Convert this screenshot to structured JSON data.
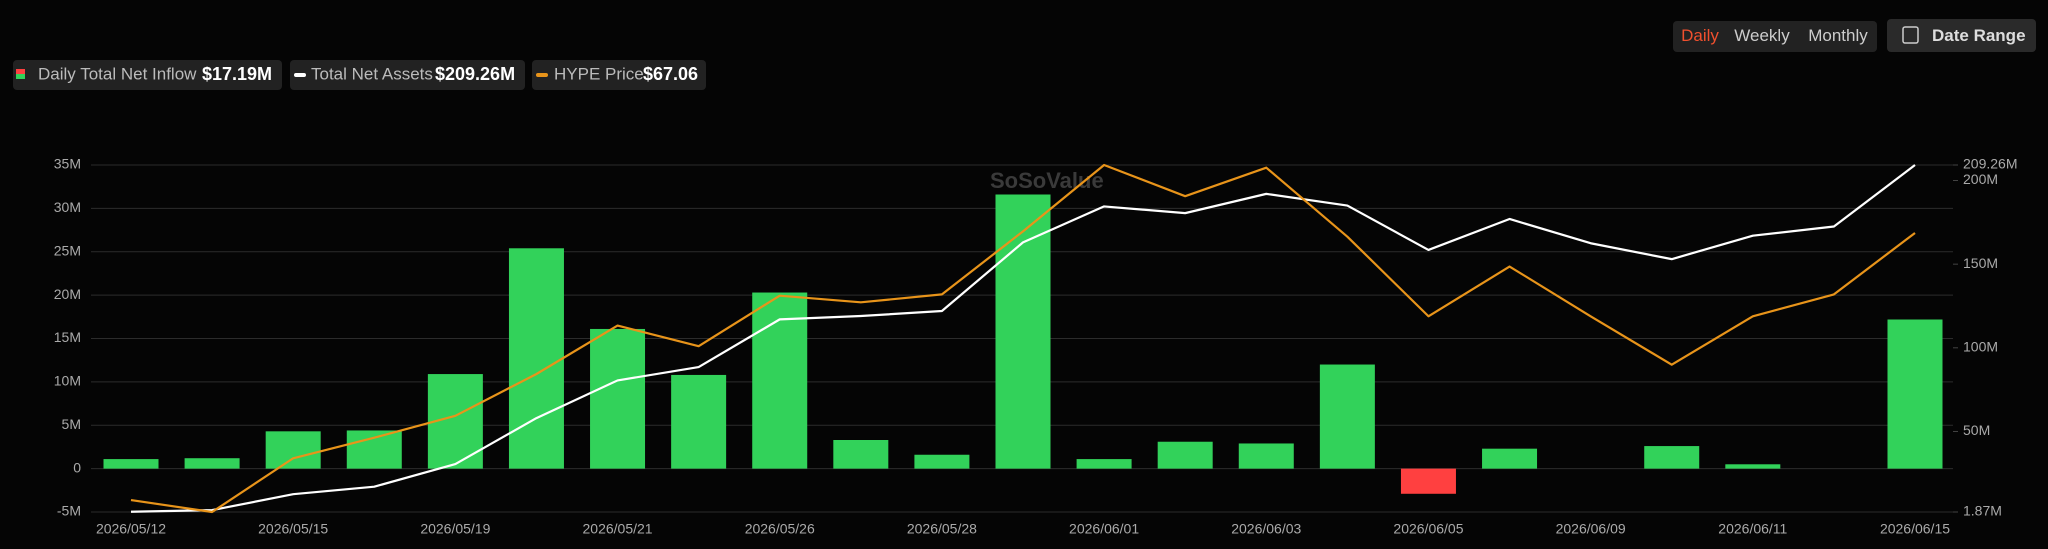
{
  "controls": {
    "periods": [
      "Daily",
      "Weekly",
      "Monthly"
    ],
    "active": 0,
    "date_range": "Date Range"
  },
  "watermark": "SoSoValue",
  "chart_data": {
    "type": "bar",
    "categories": [
      "2026/05/12",
      null,
      "2026/05/15",
      null,
      "2026/05/19",
      null,
      "2026/05/21",
      null,
      "2026/05/26",
      null,
      "2026/05/28",
      null,
      "2026/06/01",
      null,
      "2026/06/03",
      null,
      "2026/06/05",
      null,
      "2026/06/09",
      null,
      "2026/06/11",
      null,
      "2026/06/15"
    ],
    "legend_values": [
      "$17.19M",
      "$209.26M",
      "$67.06"
    ],
    "series": [
      {
        "name": "Daily Total Net Inflow",
        "type": "bar",
        "color": "#32d25a",
        "negative_color": "#ff4040",
        "values": [
          1.1,
          1.2,
          4.3,
          4.4,
          10.9,
          25.4,
          16.1,
          10.8,
          20.3,
          3.3,
          1.6,
          31.6,
          1.1,
          3.1,
          2.9,
          12.0,
          -2.9,
          2.3,
          0,
          2.6,
          0.5,
          0,
          17.19
        ]
      },
      {
        "name": "Total Net Assets",
        "type": "line",
        "color": "#ffffff",
        "axis": "y2",
        "values": [
          2.0,
          3.0,
          12.5,
          17,
          30.5,
          58,
          80.5,
          88.5,
          117,
          119,
          122,
          163,
          184.5,
          180.5,
          192,
          185,
          158.5,
          177,
          162.5,
          153,
          167,
          172.5,
          209.26
        ]
      },
      {
        "name": "HYPE Price",
        "type": "line",
        "color": "#e8941a",
        "axis": "y3",
        "values": [
          26.8,
          25,
          33.1,
          36.2,
          39.5,
          45.8,
          53.1,
          50.0,
          57.6,
          56.6,
          57.8,
          67.3,
          77.3,
          72.6,
          76.9,
          66.5,
          54.5,
          62.0,
          54.5,
          47.2,
          54.5,
          57.8,
          67.06
        ]
      }
    ],
    "ylim": [
      -5,
      35
    ],
    "yticks": [
      {
        "value": -5,
        "label": "-5M"
      },
      {
        "value": 0,
        "label": "0"
      },
      {
        "value": 5,
        "label": "5M"
      },
      {
        "value": 10,
        "label": "10M"
      },
      {
        "value": 15,
        "label": "15M"
      },
      {
        "value": 20,
        "label": "20M"
      },
      {
        "value": 25,
        "label": "25M"
      },
      {
        "value": 30,
        "label": "30M"
      },
      {
        "value": 35,
        "label": "35M"
      }
    ],
    "y2lim": [
      1.87,
      209.26
    ],
    "y2ticks": [
      {
        "value": 1.87,
        "label": "1.87M"
      },
      {
        "value": 50,
        "label": "50M"
      },
      {
        "value": 100,
        "label": "100M"
      },
      {
        "value": 150,
        "label": "150M"
      },
      {
        "value": 200,
        "label": "200M"
      },
      {
        "value": 209.26,
        "label": "209.26M"
      }
    ],
    "y3lim": [
      25,
      77.3
    ],
    "grid": true
  }
}
